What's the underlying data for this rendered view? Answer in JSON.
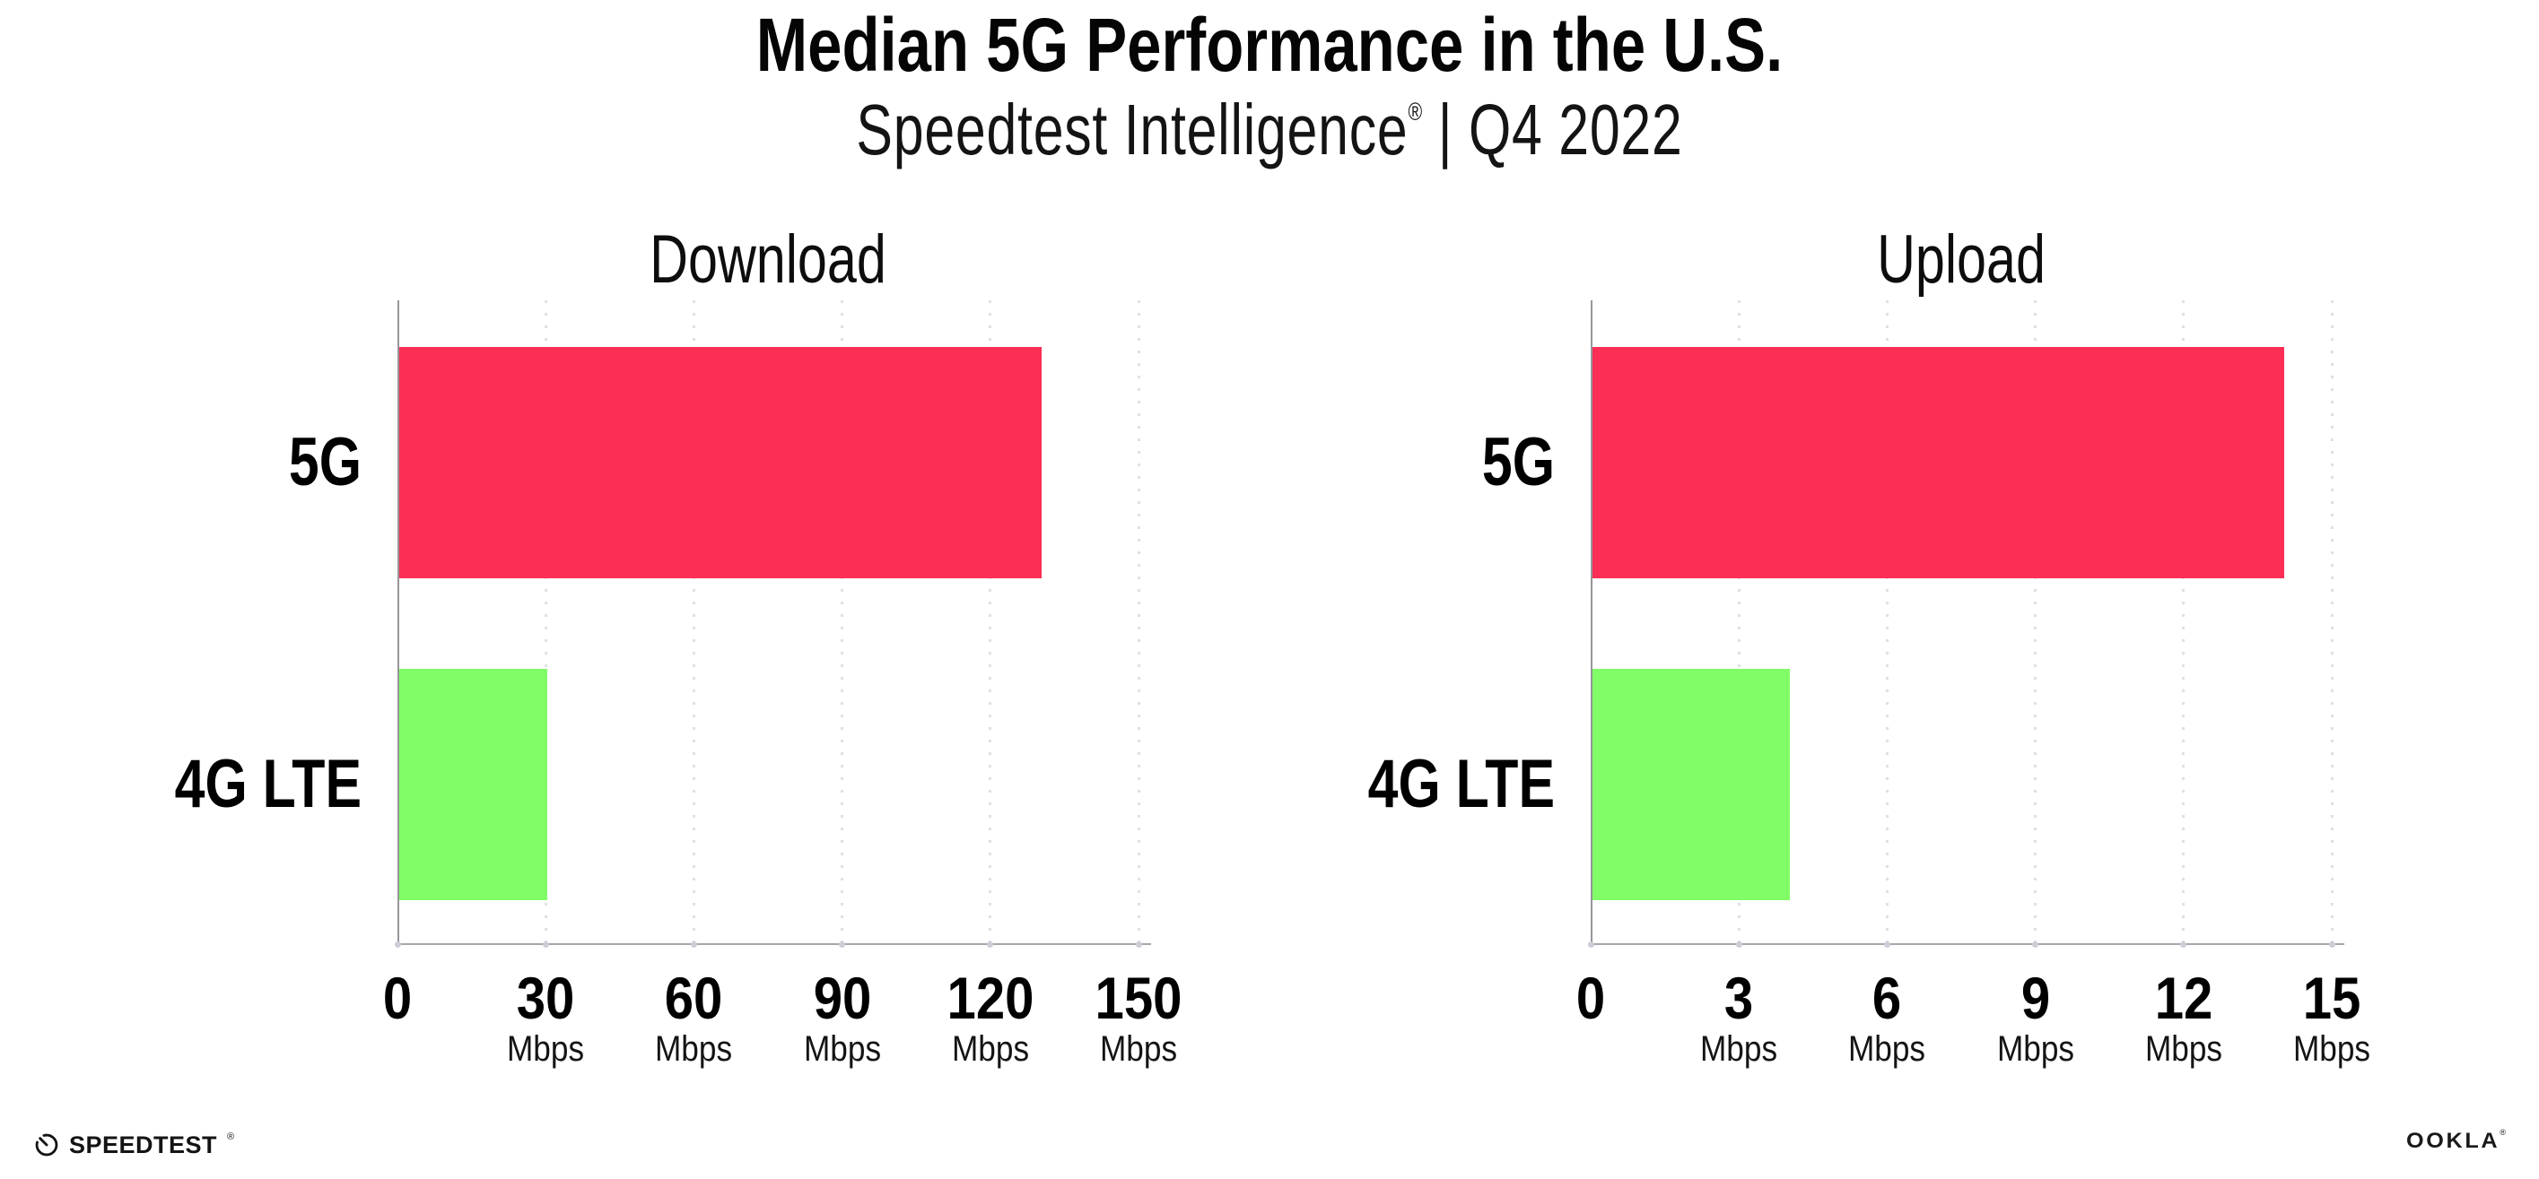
{
  "header": {
    "title": "Median 5G Performance in the U.S.",
    "subtitle_brand": "Speedtest Intelligence",
    "registered_mark": "®",
    "subtitle_rest": " | Q4 2022"
  },
  "chart_data": [
    {
      "type": "bar",
      "orientation": "horizontal",
      "title": "Download",
      "categories": [
        "5G",
        "4G LTE"
      ],
      "values": [
        130,
        30
      ],
      "unit": "Mbps",
      "xlabel": "",
      "ylabel": "",
      "xlim": [
        0,
        150
      ],
      "xticks": [
        0,
        30,
        60,
        90,
        120,
        150
      ],
      "bar_colors": [
        "#FC2E56",
        "#80FD67"
      ],
      "grid": "dotted-vertical-gridlines",
      "legend": "none"
    },
    {
      "type": "bar",
      "orientation": "horizontal",
      "title": "Upload",
      "categories": [
        "5G",
        "4G LTE"
      ],
      "values": [
        14,
        4
      ],
      "unit": "Mbps",
      "xlabel": "",
      "ylabel": "",
      "xlim": [
        0,
        15
      ],
      "xticks": [
        0,
        3,
        6,
        9,
        12,
        15
      ],
      "bar_colors": [
        "#FC2E56",
        "#80FD67"
      ],
      "grid": "dotted-vertical-gridlines",
      "legend": "none"
    }
  ],
  "footer": {
    "speedtest_wordmark": "SPEEDTEST",
    "speedtest_mark": "®",
    "ookla_wordmark": "OOKLA",
    "ookla_mark": "®"
  },
  "colors": {
    "bar_5g": "#FC2E56",
    "bar_4g_lte": "#80FD67",
    "axis": "#A6A6AB",
    "gridline": "#DFDFE7",
    "text": "#000000"
  }
}
